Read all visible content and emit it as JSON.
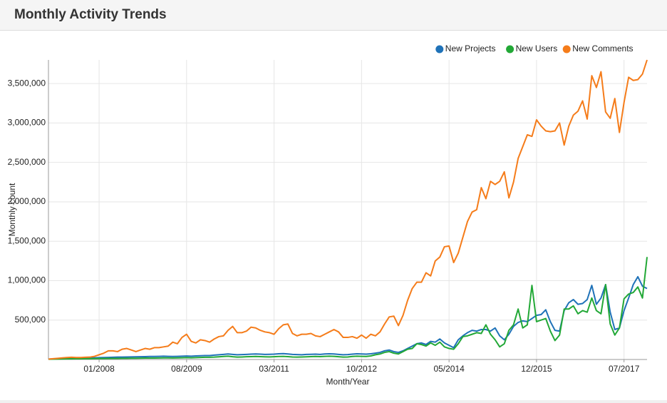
{
  "chart_data": {
    "type": "line",
    "title": "Monthly Activity Trends",
    "x_label": "Month/Year",
    "y_label": "Monthly count",
    "legend": "top-right",
    "grid": true,
    "ylim": [
      0,
      3800000
    ],
    "yticks": [
      {
        "value": 500000,
        "label": "500,000"
      },
      {
        "value": 1000000,
        "label": "1,000,000"
      },
      {
        "value": 1500000,
        "label": "1,500,000"
      },
      {
        "value": 2000000,
        "label": "2,000,000"
      },
      {
        "value": 2500000,
        "label": "2,500,000"
      },
      {
        "value": 3000000,
        "label": "3,000,000"
      },
      {
        "value": 3500000,
        "label": "3,500,000"
      }
    ],
    "categories": [
      null,
      null,
      null,
      null,
      null,
      null,
      null,
      null,
      null,
      null,
      null,
      "01/2008",
      null,
      null,
      null,
      null,
      null,
      null,
      null,
      null,
      null,
      null,
      null,
      null,
      null,
      null,
      null,
      null,
      null,
      null,
      "08/2009",
      null,
      null,
      null,
      null,
      null,
      null,
      null,
      null,
      null,
      null,
      null,
      null,
      null,
      null,
      null,
      null,
      null,
      null,
      "03/2011",
      null,
      null,
      null,
      null,
      null,
      null,
      null,
      null,
      null,
      null,
      null,
      null,
      null,
      null,
      null,
      null,
      null,
      null,
      "10/2012",
      null,
      null,
      null,
      null,
      null,
      null,
      null,
      null,
      null,
      null,
      null,
      null,
      null,
      null,
      null,
      null,
      null,
      null,
      "05/2014",
      null,
      null,
      null,
      null,
      null,
      null,
      null,
      null,
      null,
      null,
      null,
      null,
      null,
      null,
      null,
      null,
      null,
      null,
      "12/2015",
      null,
      null,
      null,
      null,
      null,
      null,
      null,
      null,
      null,
      null,
      null,
      null,
      null,
      null,
      null,
      null,
      null,
      null,
      "07/2017",
      null,
      null,
      null,
      null,
      null
    ],
    "series": [
      {
        "name": "New Projects",
        "color": "#1f72b8",
        "values": [
          5000,
          8000,
          10000,
          12000,
          14000,
          15000,
          16000,
          17000,
          18000,
          20000,
          22000,
          24000,
          25000,
          26000,
          28000,
          30000,
          30000,
          32000,
          33000,
          34000,
          35000,
          36000,
          38000,
          38000,
          40000,
          42000,
          40000,
          38000,
          40000,
          42000,
          44000,
          42000,
          45000,
          48000,
          50000,
          50000,
          55000,
          60000,
          65000,
          70000,
          65000,
          60000,
          62000,
          65000,
          68000,
          70000,
          68000,
          65000,
          66000,
          68000,
          72000,
          75000,
          70000,
          65000,
          62000,
          60000,
          64000,
          66000,
          68000,
          65000,
          70000,
          72000,
          70000,
          65000,
          60000,
          62000,
          68000,
          72000,
          70000,
          68000,
          72000,
          80000,
          90000,
          110000,
          120000,
          100000,
          90000,
          110000,
          140000,
          170000,
          200000,
          210000,
          190000,
          230000,
          220000,
          260000,
          210000,
          180000,
          150000,
          250000,
          300000,
          340000,
          370000,
          360000,
          380000,
          380000,
          360000,
          400000,
          300000,
          250000,
          320000,
          420000,
          470000,
          490000,
          480000,
          520000,
          560000,
          570000,
          630000,
          480000,
          370000,
          360000,
          620000,
          720000,
          760000,
          700000,
          710000,
          760000,
          940000,
          700000,
          780000,
          950000,
          600000,
          380000,
          400000,
          620000,
          780000,
          950000,
          1050000,
          930000,
          900000
        ]
      },
      {
        "name": "New Users",
        "color": "#22a836",
        "values": [
          3000,
          5000,
          6000,
          7000,
          8000,
          8000,
          9000,
          9000,
          10000,
          10000,
          11000,
          12000,
          12000,
          13000,
          14000,
          14000,
          15000,
          15000,
          16000,
          16000,
          17000,
          18000,
          18000,
          18000,
          19000,
          20000,
          20000,
          19000,
          20000,
          22000,
          24000,
          22000,
          24000,
          26000,
          28000,
          28000,
          30000,
          34000,
          38000,
          42000,
          35000,
          30000,
          32000,
          35000,
          36000,
          38000,
          36000,
          34000,
          33000,
          35000,
          38000,
          40000,
          36000,
          32000,
          30000,
          32000,
          34000,
          36000,
          38000,
          36000,
          40000,
          42000,
          40000,
          35000,
          30000,
          32000,
          38000,
          42000,
          40000,
          38000,
          45000,
          60000,
          70000,
          90000,
          100000,
          80000,
          70000,
          100000,
          130000,
          140000,
          200000,
          190000,
          170000,
          210000,
          180000,
          220000,
          160000,
          140000,
          130000,
          200000,
          290000,
          300000,
          320000,
          340000,
          330000,
          440000,
          320000,
          250000,
          160000,
          200000,
          370000,
          440000,
          640000,
          400000,
          440000,
          940000,
          480000,
          500000,
          520000,
          360000,
          240000,
          310000,
          640000,
          640000,
          680000,
          580000,
          620000,
          600000,
          780000,
          620000,
          580000,
          950000,
          450000,
          310000,
          400000,
          770000,
          830000,
          850000,
          920000,
          780000,
          1300000
        ]
      },
      {
        "name": "New Comments",
        "color": "#f57c1a",
        "values": [
          5000,
          10000,
          15000,
          20000,
          25000,
          28000,
          25000,
          25000,
          28000,
          30000,
          40000,
          60000,
          80000,
          110000,
          110000,
          100000,
          130000,
          140000,
          120000,
          100000,
          120000,
          140000,
          130000,
          150000,
          150000,
          160000,
          170000,
          220000,
          200000,
          280000,
          320000,
          230000,
          210000,
          250000,
          240000,
          220000,
          260000,
          290000,
          300000,
          370000,
          420000,
          340000,
          340000,
          360000,
          410000,
          400000,
          370000,
          350000,
          340000,
          320000,
          390000,
          440000,
          450000,
          330000,
          300000,
          320000,
          320000,
          330000,
          300000,
          290000,
          320000,
          350000,
          380000,
          350000,
          280000,
          280000,
          290000,
          270000,
          310000,
          270000,
          320000,
          300000,
          350000,
          450000,
          540000,
          550000,
          430000,
          560000,
          750000,
          900000,
          980000,
          980000,
          1100000,
          1060000,
          1250000,
          1300000,
          1430000,
          1440000,
          1230000,
          1350000,
          1550000,
          1750000,
          1870000,
          1900000,
          2180000,
          2040000,
          2260000,
          2220000,
          2260000,
          2380000,
          2050000,
          2250000,
          2550000,
          2700000,
          2850000,
          2830000,
          3040000,
          2960000,
          2900000,
          2890000,
          2900000,
          3000000,
          2720000,
          2960000,
          3100000,
          3150000,
          3280000,
          3050000,
          3600000,
          3450000,
          3650000,
          3140000,
          3060000,
          3310000,
          2880000,
          3260000,
          3580000,
          3540000,
          3550000,
          3620000,
          3800000
        ]
      }
    ]
  }
}
